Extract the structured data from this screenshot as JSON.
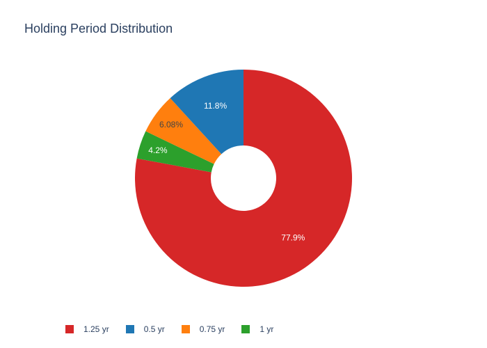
{
  "chart_data": {
    "type": "pie",
    "hole": true,
    "title": "Holding Period Distribution",
    "slices": [
      {
        "label": "1.25 yr",
        "value": 77.9,
        "text": "77.9%",
        "color": "#d62728",
        "text_color": "#ffffff"
      },
      {
        "label": "1 yr",
        "value": 4.2,
        "text": "4.2%",
        "color": "#2ca02c",
        "text_color": "#ffffff"
      },
      {
        "label": "0.75 yr",
        "value": 6.08,
        "text": "6.08%",
        "color": "#ff7f0e",
        "text_color": "#444444"
      },
      {
        "label": "0.5 yr",
        "value": 11.8,
        "text": "11.8%",
        "color": "#1f77b4",
        "text_color": "#ffffff"
      }
    ],
    "legend": {
      "placement": "bottom-left",
      "orientation": "horizontal",
      "entries": [
        {
          "label": "1.25 yr",
          "color": "#d62728"
        },
        {
          "label": "0.5 yr",
          "color": "#1f77b4"
        },
        {
          "label": "0.75 yr",
          "color": "#ff7f0e"
        },
        {
          "label": "1 yr",
          "color": "#2ca02c"
        }
      ]
    }
  }
}
